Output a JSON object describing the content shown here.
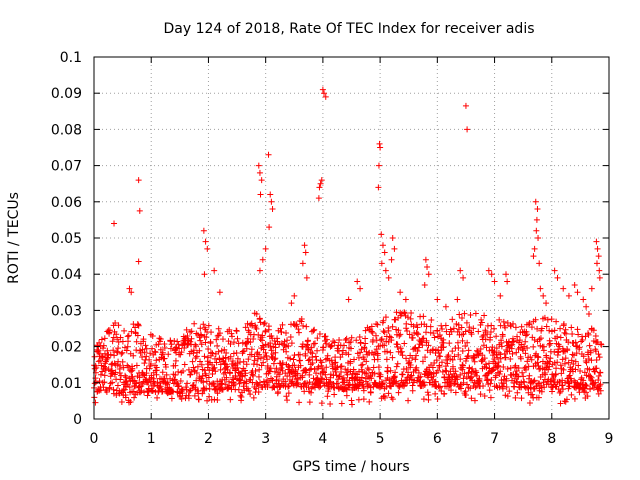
{
  "chart_data": {
    "type": "scatter",
    "title": "Day 124 of 2018, Rate Of TEC Index for receiver adis",
    "xlabel": "GPS time / hours",
    "ylabel": "ROTI / TECUs",
    "xlim": [
      0,
      9
    ],
    "ylim": [
      0,
      0.1
    ],
    "xticks": [
      "0",
      "1",
      "2",
      "3",
      "4",
      "5",
      "6",
      "7",
      "8",
      "9"
    ],
    "yticks": [
      "0",
      "0.01",
      "0.02",
      "0.03",
      "0.04",
      "0.05",
      "0.06",
      "0.07",
      "0.08",
      "0.09",
      "0.1"
    ],
    "grid": true,
    "marker": "+",
    "color": "#ff0000",
    "series": [
      {
        "name": "ROTI",
        "points": [
          [
            0.35,
            0.054
          ],
          [
            0.78,
            0.066
          ],
          [
            0.8,
            0.0575
          ],
          [
            0.78,
            0.0435
          ],
          [
            0.62,
            0.036
          ],
          [
            0.65,
            0.035
          ],
          [
            1.92,
            0.052
          ],
          [
            1.95,
            0.049
          ],
          [
            1.98,
            0.047
          ],
          [
            1.93,
            0.04
          ],
          [
            2.1,
            0.041
          ],
          [
            2.2,
            0.035
          ],
          [
            2.88,
            0.07
          ],
          [
            2.9,
            0.068
          ],
          [
            2.93,
            0.066
          ],
          [
            2.91,
            0.062
          ],
          [
            3.05,
            0.073
          ],
          [
            3.08,
            0.062
          ],
          [
            3.1,
            0.06
          ],
          [
            3.12,
            0.058
          ],
          [
            3.06,
            0.053
          ],
          [
            2.95,
            0.044
          ],
          [
            2.9,
            0.041
          ],
          [
            3.0,
            0.047
          ],
          [
            3.68,
            0.048
          ],
          [
            3.7,
            0.046
          ],
          [
            3.65,
            0.043
          ],
          [
            3.72,
            0.039
          ],
          [
            3.5,
            0.034
          ],
          [
            3.45,
            0.032
          ],
          [
            3.96,
            0.065
          ],
          [
            3.94,
            0.064
          ],
          [
            3.93,
            0.061
          ],
          [
            3.98,
            0.066
          ],
          [
            4.0,
            0.091
          ],
          [
            4.02,
            0.09
          ],
          [
            4.05,
            0.089
          ],
          [
            4.45,
            0.033
          ],
          [
            4.6,
            0.038
          ],
          [
            4.65,
            0.036
          ],
          [
            4.99,
            0.076
          ],
          [
            5.0,
            0.075
          ],
          [
            4.98,
            0.07
          ],
          [
            4.97,
            0.064
          ],
          [
            5.02,
            0.051
          ],
          [
            5.05,
            0.048
          ],
          [
            5.08,
            0.046
          ],
          [
            5.03,
            0.043
          ],
          [
            5.1,
            0.041
          ],
          [
            5.22,
            0.05
          ],
          [
            5.25,
            0.047
          ],
          [
            5.2,
            0.044
          ],
          [
            5.15,
            0.039
          ],
          [
            5.35,
            0.035
          ],
          [
            5.45,
            0.033
          ],
          [
            5.8,
            0.044
          ],
          [
            5.82,
            0.042
          ],
          [
            5.85,
            0.04
          ],
          [
            5.78,
            0.037
          ],
          [
            6.0,
            0.033
          ],
          [
            6.15,
            0.031
          ],
          [
            6.5,
            0.0865
          ],
          [
            6.52,
            0.08
          ],
          [
            6.4,
            0.041
          ],
          [
            6.45,
            0.039
          ],
          [
            6.35,
            0.033
          ],
          [
            6.9,
            0.041
          ],
          [
            6.95,
            0.04
          ],
          [
            7.0,
            0.038
          ],
          [
            7.2,
            0.04
          ],
          [
            7.22,
            0.038
          ],
          [
            7.1,
            0.034
          ],
          [
            7.72,
            0.06
          ],
          [
            7.75,
            0.058
          ],
          [
            7.74,
            0.055
          ],
          [
            7.73,
            0.052
          ],
          [
            7.76,
            0.05
          ],
          [
            7.7,
            0.047
          ],
          [
            7.68,
            0.045
          ],
          [
            7.78,
            0.043
          ],
          [
            7.8,
            0.036
          ],
          [
            7.85,
            0.034
          ],
          [
            7.9,
            0.032
          ],
          [
            8.05,
            0.041
          ],
          [
            8.1,
            0.039
          ],
          [
            8.2,
            0.036
          ],
          [
            8.3,
            0.034
          ],
          [
            8.4,
            0.037
          ],
          [
            8.45,
            0.035
          ],
          [
            8.55,
            0.033
          ],
          [
            8.6,
            0.031
          ],
          [
            8.78,
            0.049
          ],
          [
            8.8,
            0.047
          ],
          [
            8.82,
            0.045
          ],
          [
            8.79,
            0.043
          ],
          [
            8.83,
            0.041
          ],
          [
            8.84,
            0.039
          ],
          [
            8.7,
            0.036
          ],
          [
            8.65,
            0.029
          ]
        ],
        "band": {
          "x_start": 0.0,
          "x_end": 8.87,
          "x_step": 0.0125,
          "per_step": 3,
          "baseline": [
            [
              0.0,
              0.0075
            ],
            [
              0.5,
              0.007
            ],
            [
              1.0,
              0.0075
            ],
            [
              1.5,
              0.007
            ],
            [
              2.0,
              0.008
            ],
            [
              2.5,
              0.008
            ],
            [
              3.0,
              0.0085
            ],
            [
              3.5,
              0.009
            ],
            [
              4.0,
              0.0085
            ],
            [
              4.5,
              0.008
            ],
            [
              5.0,
              0.009
            ],
            [
              5.5,
              0.009
            ],
            [
              6.0,
              0.009
            ],
            [
              6.5,
              0.0085
            ],
            [
              7.0,
              0.009
            ],
            [
              7.5,
              0.0085
            ],
            [
              8.0,
              0.008
            ],
            [
              8.5,
              0.0085
            ],
            [
              8.87,
              0.008
            ]
          ],
          "top": [
            [
              0.0,
              0.019
            ],
            [
              0.3,
              0.026
            ],
            [
              0.6,
              0.029
            ],
            [
              0.9,
              0.024
            ],
            [
              1.2,
              0.022
            ],
            [
              1.5,
              0.023
            ],
            [
              1.8,
              0.027
            ],
            [
              2.1,
              0.026
            ],
            [
              2.4,
              0.025
            ],
            [
              2.7,
              0.029
            ],
            [
              3.0,
              0.03
            ],
            [
              3.3,
              0.026
            ],
            [
              3.6,
              0.028
            ],
            [
              3.9,
              0.024
            ],
            [
              4.2,
              0.022
            ],
            [
              4.5,
              0.023
            ],
            [
              4.8,
              0.026
            ],
            [
              5.1,
              0.029
            ],
            [
              5.4,
              0.03
            ],
            [
              5.7,
              0.029
            ],
            [
              6.0,
              0.027
            ],
            [
              6.3,
              0.029
            ],
            [
              6.6,
              0.03
            ],
            [
              6.9,
              0.028
            ],
            [
              7.2,
              0.027
            ],
            [
              7.5,
              0.026
            ],
            [
              7.8,
              0.029
            ],
            [
              8.1,
              0.027
            ],
            [
              8.4,
              0.025
            ],
            [
              8.7,
              0.026
            ],
            [
              8.87,
              0.022
            ]
          ],
          "min": [
            [
              0.0,
              0.0045
            ],
            [
              1.0,
              0.0045
            ],
            [
              2.0,
              0.005
            ],
            [
              3.0,
              0.005
            ],
            [
              4.3,
              0.0035
            ],
            [
              5.0,
              0.005
            ],
            [
              6.0,
              0.005
            ],
            [
              7.0,
              0.005
            ],
            [
              8.0,
              0.004
            ],
            [
              8.87,
              0.005
            ]
          ]
        }
      }
    ]
  }
}
